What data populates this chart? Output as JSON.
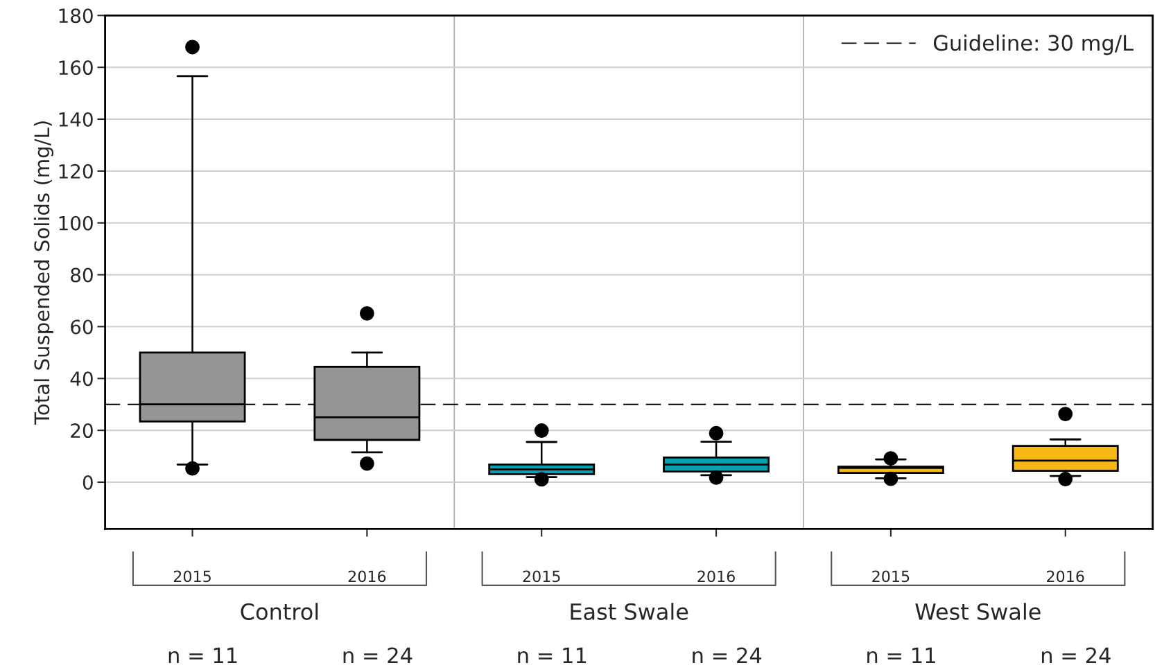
{
  "chart_data": {
    "type": "box",
    "ylabel": "Total Suspended Solids (mg/L)",
    "categories": [
      "2015",
      "2016",
      "2015",
      "2016",
      "2015",
      "2016"
    ],
    "colors": [
      "#959595",
      "#959595",
      "#0b9fb0",
      "#0b9fb0",
      "#f7b816",
      "#f7b816"
    ],
    "boxes": [
      {
        "low": 6.8,
        "q1": 23.4,
        "median": 30.0,
        "q3": 50.0,
        "high": 156.6,
        "outliers": [
          167.8,
          5.3
        ]
      },
      {
        "low": 11.5,
        "q1": 16.3,
        "median": 25.0,
        "q3": 44.5,
        "high": 50.0,
        "outliers": [
          65.1,
          7.2
        ]
      },
      {
        "low": 2.0,
        "q1": 3.1,
        "median": 4.9,
        "q3": 6.8,
        "high": 15.5,
        "outliers": [
          19.9,
          1.1
        ]
      },
      {
        "low": 2.7,
        "q1": 4.1,
        "median": 6.8,
        "q3": 9.5,
        "high": 15.6,
        "outliers": [
          18.9,
          1.8
        ]
      },
      {
        "low": 1.5,
        "q1": 3.6,
        "median": 5.5,
        "q3": 6.0,
        "high": 8.8,
        "outliers": [
          9.2,
          1.3
        ]
      },
      {
        "low": 2.4,
        "q1": 4.4,
        "median": 8.3,
        "q3": 14.0,
        "high": 16.5,
        "outliers": [
          26.3,
          1.2
        ]
      }
    ],
    "ylim": [
      -18,
      180
    ],
    "yticks": [
      0,
      20,
      40,
      60,
      80,
      100,
      120,
      140,
      160,
      180
    ],
    "grid": "y",
    "legend": "top right",
    "ref_lines": [
      {
        "axis": "y",
        "value": 30,
        "label": "Guideline: 30 mg/L",
        "color": "#000000",
        "line_style": "dashed"
      }
    ],
    "annotations": [
      "Control",
      "East Swale",
      "West Swale",
      "n = 11",
      "n = 24",
      "n = 11",
      "n = 24",
      "n = 11",
      "n = 24"
    ]
  }
}
